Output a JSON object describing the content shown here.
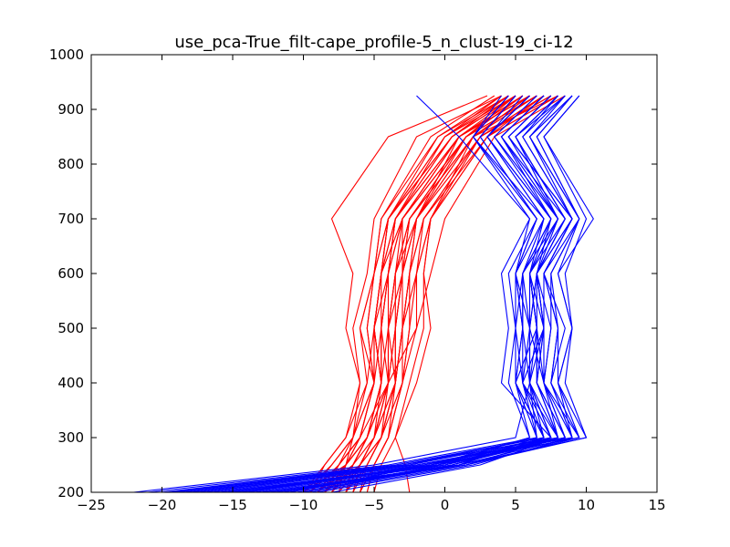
{
  "chart_data": {
    "type": "line",
    "title": "use_pca-True_filt-cape_profile-5_n_clust-19_ci-12",
    "xlabel": "",
    "ylabel": "",
    "xlim": [
      -25,
      15
    ],
    "ylim": [
      200,
      1000
    ],
    "xticks": [
      -25,
      -20,
      -15,
      -10,
      -5,
      0,
      5,
      10,
      15
    ],
    "yticks": [
      200,
      300,
      400,
      500,
      600,
      700,
      800,
      900,
      1000
    ],
    "grid": false,
    "levels": [
      200,
      250,
      300,
      400,
      500,
      600,
      700,
      850,
      925
    ],
    "colors": {
      "red": "#ff0000",
      "blue": "#0000ff"
    },
    "series": [
      {
        "color": "red",
        "x": [
          -8.5,
          -6.0,
          -4.5,
          -3.5,
          -3.0,
          -2.5,
          -2.0,
          1.0,
          5.0
        ]
      },
      {
        "color": "red",
        "x": [
          -2.5,
          -2.8,
          -3.5,
          -2.5,
          -1.5,
          -1.5,
          -1.0,
          2.0,
          6.0
        ]
      },
      {
        "color": "red",
        "x": [
          -6.0,
          -5.0,
          -4.0,
          -3.5,
          -4.0,
          -3.5,
          -2.5,
          1.5,
          5.5
        ]
      },
      {
        "color": "red",
        "x": [
          -9.0,
          -7.5,
          -6.0,
          -5.0,
          -6.0,
          -5.0,
          -4.0,
          0.5,
          4.5
        ]
      },
      {
        "color": "red",
        "x": [
          -10.0,
          -7.0,
          -6.5,
          -6.0,
          -7.0,
          -6.5,
          -8.0,
          -4.0,
          3.0
        ]
      },
      {
        "color": "red",
        "x": [
          -7.0,
          -5.5,
          -4.5,
          -4.0,
          -4.5,
          -4.0,
          -3.0,
          1.0,
          6.0
        ]
      },
      {
        "color": "red",
        "x": [
          -5.5,
          -5.0,
          -4.0,
          -3.0,
          -3.0,
          -2.5,
          -2.0,
          2.5,
          7.0
        ]
      },
      {
        "color": "red",
        "x": [
          -9.0,
          -7.0,
          -5.5,
          -4.5,
          -5.0,
          -4.5,
          -3.5,
          0.0,
          4.0
        ]
      },
      {
        "color": "red",
        "x": [
          -8.0,
          -6.0,
          -5.0,
          -4.0,
          -4.0,
          -3.0,
          -3.0,
          1.5,
          5.0
        ]
      },
      {
        "color": "red",
        "x": [
          -6.5,
          -5.5,
          -4.5,
          -3.5,
          -3.5,
          -3.0,
          -2.0,
          2.0,
          6.5
        ]
      },
      {
        "color": "red",
        "x": [
          -9.5,
          -8.5,
          -7.0,
          -6.0,
          -6.5,
          -5.5,
          -5.0,
          -2.0,
          4.0
        ]
      },
      {
        "color": "red",
        "x": [
          -7.5,
          -6.0,
          -5.0,
          -3.5,
          -3.0,
          -2.5,
          -1.5,
          2.5,
          7.5
        ]
      },
      {
        "color": "red",
        "x": [
          -10.0,
          -8.0,
          -6.5,
          -5.0,
          -5.5,
          -5.0,
          -4.5,
          -1.0,
          3.5
        ]
      },
      {
        "color": "red",
        "x": [
          -8.5,
          -6.5,
          -5.5,
          -4.5,
          -4.5,
          -4.0,
          -3.5,
          1.0,
          5.5
        ]
      },
      {
        "color": "red",
        "x": [
          -6.0,
          -5.0,
          -4.0,
          -3.0,
          -2.5,
          -2.0,
          -1.5,
          3.0,
          8.0
        ]
      },
      {
        "color": "red",
        "x": [
          -9.0,
          -7.0,
          -6.0,
          -5.0,
          -5.0,
          -4.5,
          -4.0,
          0.5,
          5.0
        ]
      },
      {
        "color": "red",
        "x": [
          -7.0,
          -6.0,
          -5.0,
          -4.0,
          -3.5,
          -3.5,
          -3.0,
          1.5,
          6.5
        ]
      },
      {
        "color": "red",
        "x": [
          -9.5,
          -8.0,
          -6.5,
          -5.5,
          -6.0,
          -5.0,
          -4.0,
          -0.5,
          4.5
        ]
      },
      {
        "color": "red",
        "x": [
          -5.0,
          -4.5,
          -3.5,
          -2.0,
          -1.0,
          -1.5,
          -1.0,
          3.0,
          7.0
        ]
      },
      {
        "color": "red",
        "x": [
          -8.0,
          -7.0,
          -5.5,
          -4.5,
          -4.0,
          -4.0,
          -3.5,
          1.0,
          6.0
        ]
      },
      {
        "color": "red",
        "x": [
          -8.5,
          -7.5,
          -6.0,
          -4.0,
          -3.5,
          -3.0,
          -2.5,
          2.0,
          8.0
        ]
      },
      {
        "color": "red",
        "x": [
          -6.5,
          -6.0,
          -5.0,
          -4.5,
          -5.0,
          -4.5,
          -4.0,
          0.0,
          5.0
        ]
      },
      {
        "color": "red",
        "x": [
          -9.0,
          -6.5,
          -5.5,
          -4.0,
          -2.0,
          -1.0,
          0.0,
          3.5,
          8.5
        ]
      },
      {
        "color": "red",
        "x": [
          -7.5,
          -7.0,
          -6.0,
          -5.0,
          -5.5,
          -5.0,
          -4.5,
          -0.5,
          4.0
        ]
      },
      {
        "color": "red",
        "x": [
          -10.0,
          -8.5,
          -7.0,
          -5.5,
          -5.0,
          -4.5,
          -3.0,
          1.0,
          6.0
        ]
      },
      {
        "color": "red",
        "x": [
          -7.0,
          -6.0,
          -5.0,
          -4.0,
          -4.0,
          -3.5,
          -2.5,
          1.5,
          5.5
        ]
      },
      {
        "color": "red",
        "x": [
          -8.0,
          -6.5,
          -5.0,
          -3.5,
          -3.0,
          -2.0,
          -1.0,
          2.5,
          7.0
        ]
      },
      {
        "color": "red",
        "x": [
          -6.5,
          -5.5,
          -4.5,
          -3.5,
          -3.0,
          -3.0,
          -2.0,
          2.0,
          6.0
        ]
      },
      {
        "color": "red",
        "x": [
          -9.0,
          -7.5,
          -6.5,
          -5.0,
          -5.0,
          -4.0,
          -3.5,
          0.5,
          4.5
        ]
      },
      {
        "color": "red",
        "x": [
          -5.5,
          -5.0,
          -4.0,
          -3.0,
          -2.5,
          -2.5,
          -1.5,
          2.5,
          7.5
        ]
      },
      {
        "color": "red",
        "x": [
          -8.5,
          -7.0,
          -5.5,
          -4.0,
          -4.0,
          -3.5,
          -2.0,
          1.5,
          6.5
        ]
      },
      {
        "color": "red",
        "x": [
          -7.0,
          -6.5,
          -5.5,
          -4.5,
          -4.5,
          -4.5,
          -3.5,
          0.5,
          5.0
        ]
      },
      {
        "color": "red",
        "x": [
          -9.5,
          -7.5,
          -6.0,
          -5.0,
          -4.5,
          -4.0,
          -3.0,
          1.0,
          5.5
        ]
      },
      {
        "color": "red",
        "x": [
          -6.0,
          -5.5,
          -4.5,
          -3.0,
          -2.0,
          -2.0,
          -1.0,
          3.0,
          8.0
        ]
      },
      {
        "color": "red",
        "x": [
          -8.0,
          -6.5,
          -5.5,
          -4.5,
          -5.0,
          -4.5,
          -4.0,
          0.0,
          4.5
        ]
      },
      {
        "color": "red",
        "x": [
          -7.5,
          -6.0,
          -4.5,
          -3.5,
          -3.5,
          -3.0,
          -2.5,
          2.0,
          6.5
        ]
      },
      {
        "color": "blue",
        "x": [
          -22.0,
          -5.0,
          5.0,
          6.0,
          7.0,
          6.5,
          8.5,
          5.0,
          8.0
        ]
      },
      {
        "color": "blue",
        "x": [
          -19.0,
          -3.0,
          8.0,
          7.0,
          6.0,
          6.5,
          7.5,
          4.0,
          7.0
        ]
      },
      {
        "color": "blue",
        "x": [
          -17.0,
          -2.0,
          9.0,
          7.5,
          8.0,
          7.0,
          9.0,
          6.0,
          9.0
        ]
      },
      {
        "color": "blue",
        "x": [
          -15.0,
          0.0,
          7.0,
          5.0,
          5.5,
          5.0,
          7.0,
          3.0,
          6.0
        ]
      },
      {
        "color": "blue",
        "x": [
          -13.0,
          1.0,
          10.0,
          8.0,
          9.0,
          8.0,
          10.5,
          7.0,
          9.5
        ]
      },
      {
        "color": "blue",
        "x": [
          -11.0,
          -1.0,
          6.0,
          4.5,
          5.0,
          4.5,
          6.5,
          2.5,
          5.0
        ]
      },
      {
        "color": "blue",
        "x": [
          -10.0,
          0.5,
          8.5,
          6.5,
          7.0,
          6.0,
          8.0,
          5.0,
          8.5
        ]
      },
      {
        "color": "blue",
        "x": [
          -14.0,
          -1.5,
          7.5,
          6.0,
          6.0,
          6.5,
          9.0,
          4.5,
          7.5
        ]
      },
      {
        "color": "blue",
        "x": [
          -16.0,
          -0.5,
          9.5,
          7.0,
          7.5,
          7.5,
          9.5,
          6.5,
          9.0
        ]
      },
      {
        "color": "blue",
        "x": [
          -12.0,
          1.5,
          8.0,
          5.5,
          5.0,
          5.5,
          8.0,
          3.5,
          6.5
        ]
      },
      {
        "color": "blue",
        "x": [
          -18.0,
          -2.5,
          6.5,
          5.0,
          6.5,
          6.0,
          7.0,
          2.0,
          4.0
        ]
      },
      {
        "color": "blue",
        "x": [
          -9.0,
          2.0,
          9.0,
          7.5,
          8.5,
          7.0,
          9.0,
          5.5,
          8.0
        ]
      },
      {
        "color": "blue",
        "x": [
          -20.0,
          -3.5,
          7.0,
          6.0,
          5.5,
          5.0,
          6.0,
          1.0,
          -2.0
        ]
      },
      {
        "color": "blue",
        "x": [
          -13.5,
          0.0,
          8.0,
          6.5,
          6.5,
          6.5,
          8.5,
          4.0,
          7.0
        ]
      },
      {
        "color": "blue",
        "x": [
          -11.5,
          1.0,
          6.5,
          5.5,
          6.0,
          5.5,
          7.5,
          3.0,
          5.5
        ]
      },
      {
        "color": "blue",
        "x": [
          -15.5,
          -1.0,
          9.5,
          8.0,
          8.0,
          7.0,
          9.5,
          6.0,
          9.0
        ]
      },
      {
        "color": "blue",
        "x": [
          -10.5,
          0.5,
          7.5,
          4.0,
          4.5,
          4.0,
          6.0,
          2.0,
          4.5
        ]
      },
      {
        "color": "blue",
        "x": [
          -17.5,
          -2.0,
          8.5,
          7.0,
          7.5,
          6.5,
          8.0,
          4.5,
          7.5
        ]
      },
      {
        "color": "blue",
        "x": [
          -12.5,
          1.5,
          10.0,
          8.5,
          9.0,
          8.5,
          10.0,
          7.0,
          9.5
        ]
      },
      {
        "color": "blue",
        "x": [
          -14.5,
          -0.5,
          6.0,
          5.0,
          5.5,
          5.5,
          7.0,
          3.0,
          6.0
        ]
      },
      {
        "color": "blue",
        "x": [
          -8.0,
          2.5,
          8.0,
          6.0,
          6.0,
          6.0,
          8.5,
          5.0,
          8.0
        ]
      },
      {
        "color": "blue",
        "x": [
          -19.5,
          -3.0,
          7.0,
          5.5,
          7.0,
          7.0,
          9.0,
          5.5,
          8.5
        ]
      },
      {
        "color": "blue",
        "x": [
          -16.5,
          -1.5,
          9.0,
          7.0,
          6.5,
          6.0,
          7.5,
          3.5,
          6.5
        ]
      },
      {
        "color": "blue",
        "x": [
          -11.0,
          0.0,
          8.5,
          6.5,
          7.0,
          6.5,
          9.0,
          4.5,
          7.5
        ]
      },
      {
        "color": "blue",
        "x": [
          -13.0,
          1.0,
          7.0,
          5.0,
          5.0,
          5.0,
          6.5,
          2.5,
          5.0
        ]
      },
      {
        "color": "blue",
        "x": [
          -21.0,
          -4.0,
          6.5,
          6.0,
          6.0,
          5.0,
          6.5,
          2.0,
          4.5
        ]
      },
      {
        "color": "blue",
        "x": [
          -9.5,
          1.5,
          9.5,
          7.5,
          8.0,
          7.5,
          9.5,
          6.0,
          8.5
        ]
      },
      {
        "color": "blue",
        "x": [
          -15.0,
          -1.0,
          8.0,
          6.5,
          6.5,
          6.0,
          8.0,
          4.0,
          7.0
        ]
      },
      {
        "color": "blue",
        "x": [
          -12.0,
          0.5,
          7.5,
          5.5,
          5.5,
          5.5,
          7.5,
          3.0,
          6.0
        ]
      },
      {
        "color": "blue",
        "x": [
          -10.0,
          1.0,
          9.0,
          8.0,
          9.0,
          8.0,
          9.5,
          6.5,
          9.0
        ]
      },
      {
        "color": "blue",
        "x": [
          -18.5,
          -2.5,
          7.5,
          6.0,
          6.5,
          6.0,
          8.0,
          4.0,
          7.0
        ]
      },
      {
        "color": "blue",
        "x": [
          -14.0,
          -0.5,
          8.5,
          7.0,
          7.0,
          6.5,
          8.5,
          5.0,
          8.0
        ]
      }
    ]
  }
}
